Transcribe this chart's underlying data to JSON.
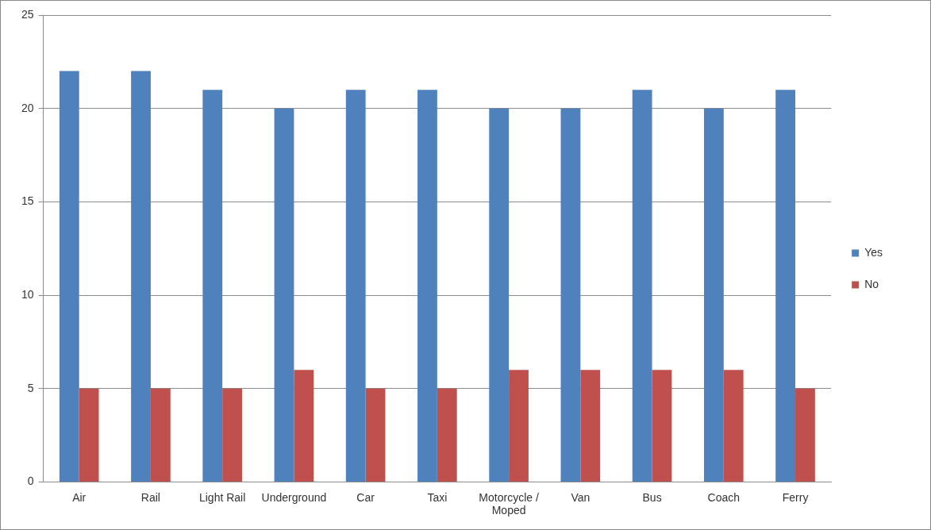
{
  "chart_data": {
    "type": "bar",
    "categories": [
      "Air",
      "Rail",
      "Light Rail",
      "Underground",
      "Car",
      "Taxi",
      "Motorcycle / Moped",
      "Van",
      "Bus",
      "Coach",
      "Ferry"
    ],
    "series": [
      {
        "name": "Yes",
        "color": "#4f81bd",
        "values": [
          22,
          22,
          21,
          20,
          21,
          21,
          20,
          20,
          21,
          20,
          21
        ]
      },
      {
        "name": "No",
        "color": "#c0504d",
        "values": [
          5,
          5,
          5,
          6,
          5,
          5,
          6,
          6,
          6,
          6,
          5
        ]
      }
    ],
    "ylim": [
      0,
      25
    ],
    "yticks": [
      0,
      5,
      10,
      15,
      20,
      25
    ],
    "grid": "y",
    "legend": "right"
  }
}
